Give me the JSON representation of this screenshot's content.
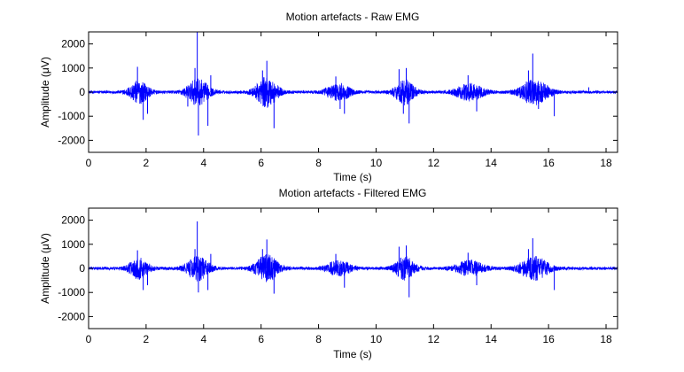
{
  "chart_data": [
    {
      "type": "line",
      "title": "Motion artefacts - Raw EMG",
      "xlabel": "Time (s)",
      "ylabel_prefix": "Amplitude (",
      "ylabel_mu": "μ",
      "ylabel_suffix": "V)",
      "xlim": [
        0,
        18.4
      ],
      "ylim": [
        -2500,
        2500
      ],
      "xticks": [
        0,
        2,
        4,
        6,
        8,
        10,
        12,
        14,
        16,
        18
      ],
      "yticks": [
        -2000,
        -1000,
        0,
        1000,
        2000
      ],
      "series_color": "#0000ff",
      "baseline_amplitude": 60,
      "bursts": [
        {
          "t": 1.75,
          "amp": 450,
          "width": 0.35
        },
        {
          "t": 3.8,
          "amp": 520,
          "width": 0.4
        },
        {
          "t": 6.2,
          "amp": 600,
          "width": 0.4
        },
        {
          "t": 8.7,
          "amp": 320,
          "width": 0.45
        },
        {
          "t": 11.0,
          "amp": 500,
          "width": 0.35
        },
        {
          "t": 13.25,
          "amp": 330,
          "width": 0.5
        },
        {
          "t": 15.5,
          "amp": 520,
          "width": 0.5
        }
      ],
      "spikes": [
        {
          "t": 1.7,
          "v": 1050
        },
        {
          "t": 1.9,
          "v": -1150
        },
        {
          "t": 2.05,
          "v": -900
        },
        {
          "t": 3.45,
          "v": -600
        },
        {
          "t": 3.7,
          "v": 1000
        },
        {
          "t": 3.78,
          "v": 2500
        },
        {
          "t": 3.82,
          "v": -1800
        },
        {
          "t": 4.15,
          "v": -1400
        },
        {
          "t": 4.25,
          "v": 700
        },
        {
          "t": 6.05,
          "v": 900
        },
        {
          "t": 6.2,
          "v": 1300
        },
        {
          "t": 6.45,
          "v": -1500
        },
        {
          "t": 8.6,
          "v": 650
        },
        {
          "t": 8.9,
          "v": -900
        },
        {
          "t": 8.75,
          "v": -700
        },
        {
          "t": 10.8,
          "v": 950
        },
        {
          "t": 11.05,
          "v": 1000
        },
        {
          "t": 11.15,
          "v": -1300
        },
        {
          "t": 10.95,
          "v": -900
        },
        {
          "t": 13.2,
          "v": 700
        },
        {
          "t": 13.5,
          "v": -800
        },
        {
          "t": 15.3,
          "v": 900
        },
        {
          "t": 15.45,
          "v": 1600
        },
        {
          "t": 15.65,
          "v": -700
        },
        {
          "t": 16.2,
          "v": -1000
        },
        {
          "t": 17.4,
          "v": 200
        }
      ]
    },
    {
      "type": "line",
      "title": "Motion artefacts - Filtered EMG",
      "xlabel": "Time (s)",
      "ylabel_prefix": "Amplitude (",
      "ylabel_mu": "μ",
      "ylabel_suffix": "V)",
      "xlim": [
        0,
        18.4
      ],
      "ylim": [
        -2500,
        2500
      ],
      "xticks": [
        0,
        2,
        4,
        6,
        8,
        10,
        12,
        14,
        16,
        18
      ],
      "yticks": [
        -2000,
        -1000,
        0,
        1000,
        2000
      ],
      "series_color": "#0000ff",
      "baseline_amplitude": 60,
      "bursts": [
        {
          "t": 1.75,
          "amp": 420,
          "width": 0.35
        },
        {
          "t": 3.8,
          "amp": 480,
          "width": 0.4
        },
        {
          "t": 6.2,
          "amp": 550,
          "width": 0.4
        },
        {
          "t": 8.7,
          "amp": 300,
          "width": 0.45
        },
        {
          "t": 11.0,
          "amp": 460,
          "width": 0.35
        },
        {
          "t": 13.25,
          "amp": 310,
          "width": 0.5
        },
        {
          "t": 15.5,
          "amp": 480,
          "width": 0.5
        }
      ],
      "spikes": [
        {
          "t": 1.7,
          "v": 750
        },
        {
          "t": 1.9,
          "v": -900
        },
        {
          "t": 2.05,
          "v": -700
        },
        {
          "t": 3.7,
          "v": 800
        },
        {
          "t": 3.78,
          "v": 1950
        },
        {
          "t": 3.82,
          "v": -1000
        },
        {
          "t": 4.15,
          "v": -900
        },
        {
          "t": 4.25,
          "v": 600
        },
        {
          "t": 6.2,
          "v": 1200
        },
        {
          "t": 6.45,
          "v": -1050
        },
        {
          "t": 6.05,
          "v": 800
        },
        {
          "t": 8.6,
          "v": 600
        },
        {
          "t": 8.9,
          "v": -800
        },
        {
          "t": 10.8,
          "v": 900
        },
        {
          "t": 11.05,
          "v": 950
        },
        {
          "t": 11.15,
          "v": -1200
        },
        {
          "t": 13.2,
          "v": 650
        },
        {
          "t": 13.5,
          "v": -700
        },
        {
          "t": 15.45,
          "v": 1250
        },
        {
          "t": 15.3,
          "v": 800
        },
        {
          "t": 16.2,
          "v": -900
        }
      ]
    }
  ]
}
